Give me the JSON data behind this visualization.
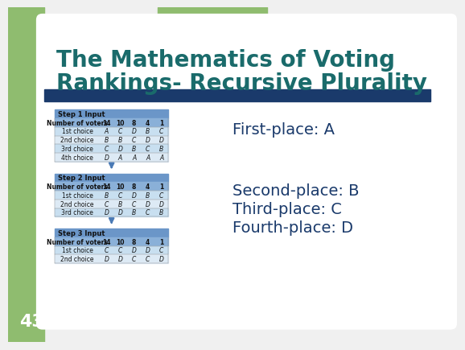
{
  "title_line1": "The Mathematics of Voting",
  "title_line2": "Rankings- Recursive Plurality",
  "title_color": "#1a6b6b",
  "background_color": "#f0f0f0",
  "left_bar_color": "#8fbc6f",
  "blue_bar_color": "#1a3a6b",
  "slide_number": "43",
  "results": [
    "First-place: A",
    "Second-place: B",
    "Third-place: C",
    "Fourth-place: D"
  ],
  "results_color": "#1a3a6b",
  "table_header_color": "#6b96c8",
  "table_col_header_color": "#8ab0d8",
  "table_row1_color": "#c8dff0",
  "table_row2_color": "#ddeaf5",
  "step1": {
    "label": "Step 1 Input",
    "columns": [
      "Number of voters",
      "14",
      "10",
      "8",
      "4",
      "1"
    ],
    "rows": [
      [
        "1st choice",
        "A",
        "C",
        "D",
        "B",
        "C"
      ],
      [
        "2nd choice",
        "B",
        "B",
        "C",
        "D",
        "D"
      ],
      [
        "3rd choice",
        "C",
        "D",
        "B",
        "C",
        "B"
      ],
      [
        "4th choice",
        "D",
        "A",
        "A",
        "A",
        "A"
      ]
    ]
  },
  "step2": {
    "label": "Step 2 Input",
    "columns": [
      "Number of voters",
      "14",
      "10",
      "8",
      "4",
      "1"
    ],
    "rows": [
      [
        "1st choice",
        "B",
        "C",
        "D",
        "B",
        "C"
      ],
      [
        "2nd choice",
        "C",
        "B",
        "C",
        "D",
        "D"
      ],
      [
        "3rd choice",
        "D",
        "D",
        "B",
        "C",
        "B"
      ]
    ]
  },
  "step3": {
    "label": "Step 3 Input",
    "columns": [
      "Number of voters",
      "14",
      "10",
      "8",
      "4",
      "1"
    ],
    "rows": [
      [
        "1st choice",
        "C",
        "C",
        "D",
        "D",
        "C"
      ],
      [
        "2nd choice",
        "D",
        "D",
        "C",
        "C",
        "D"
      ]
    ]
  }
}
